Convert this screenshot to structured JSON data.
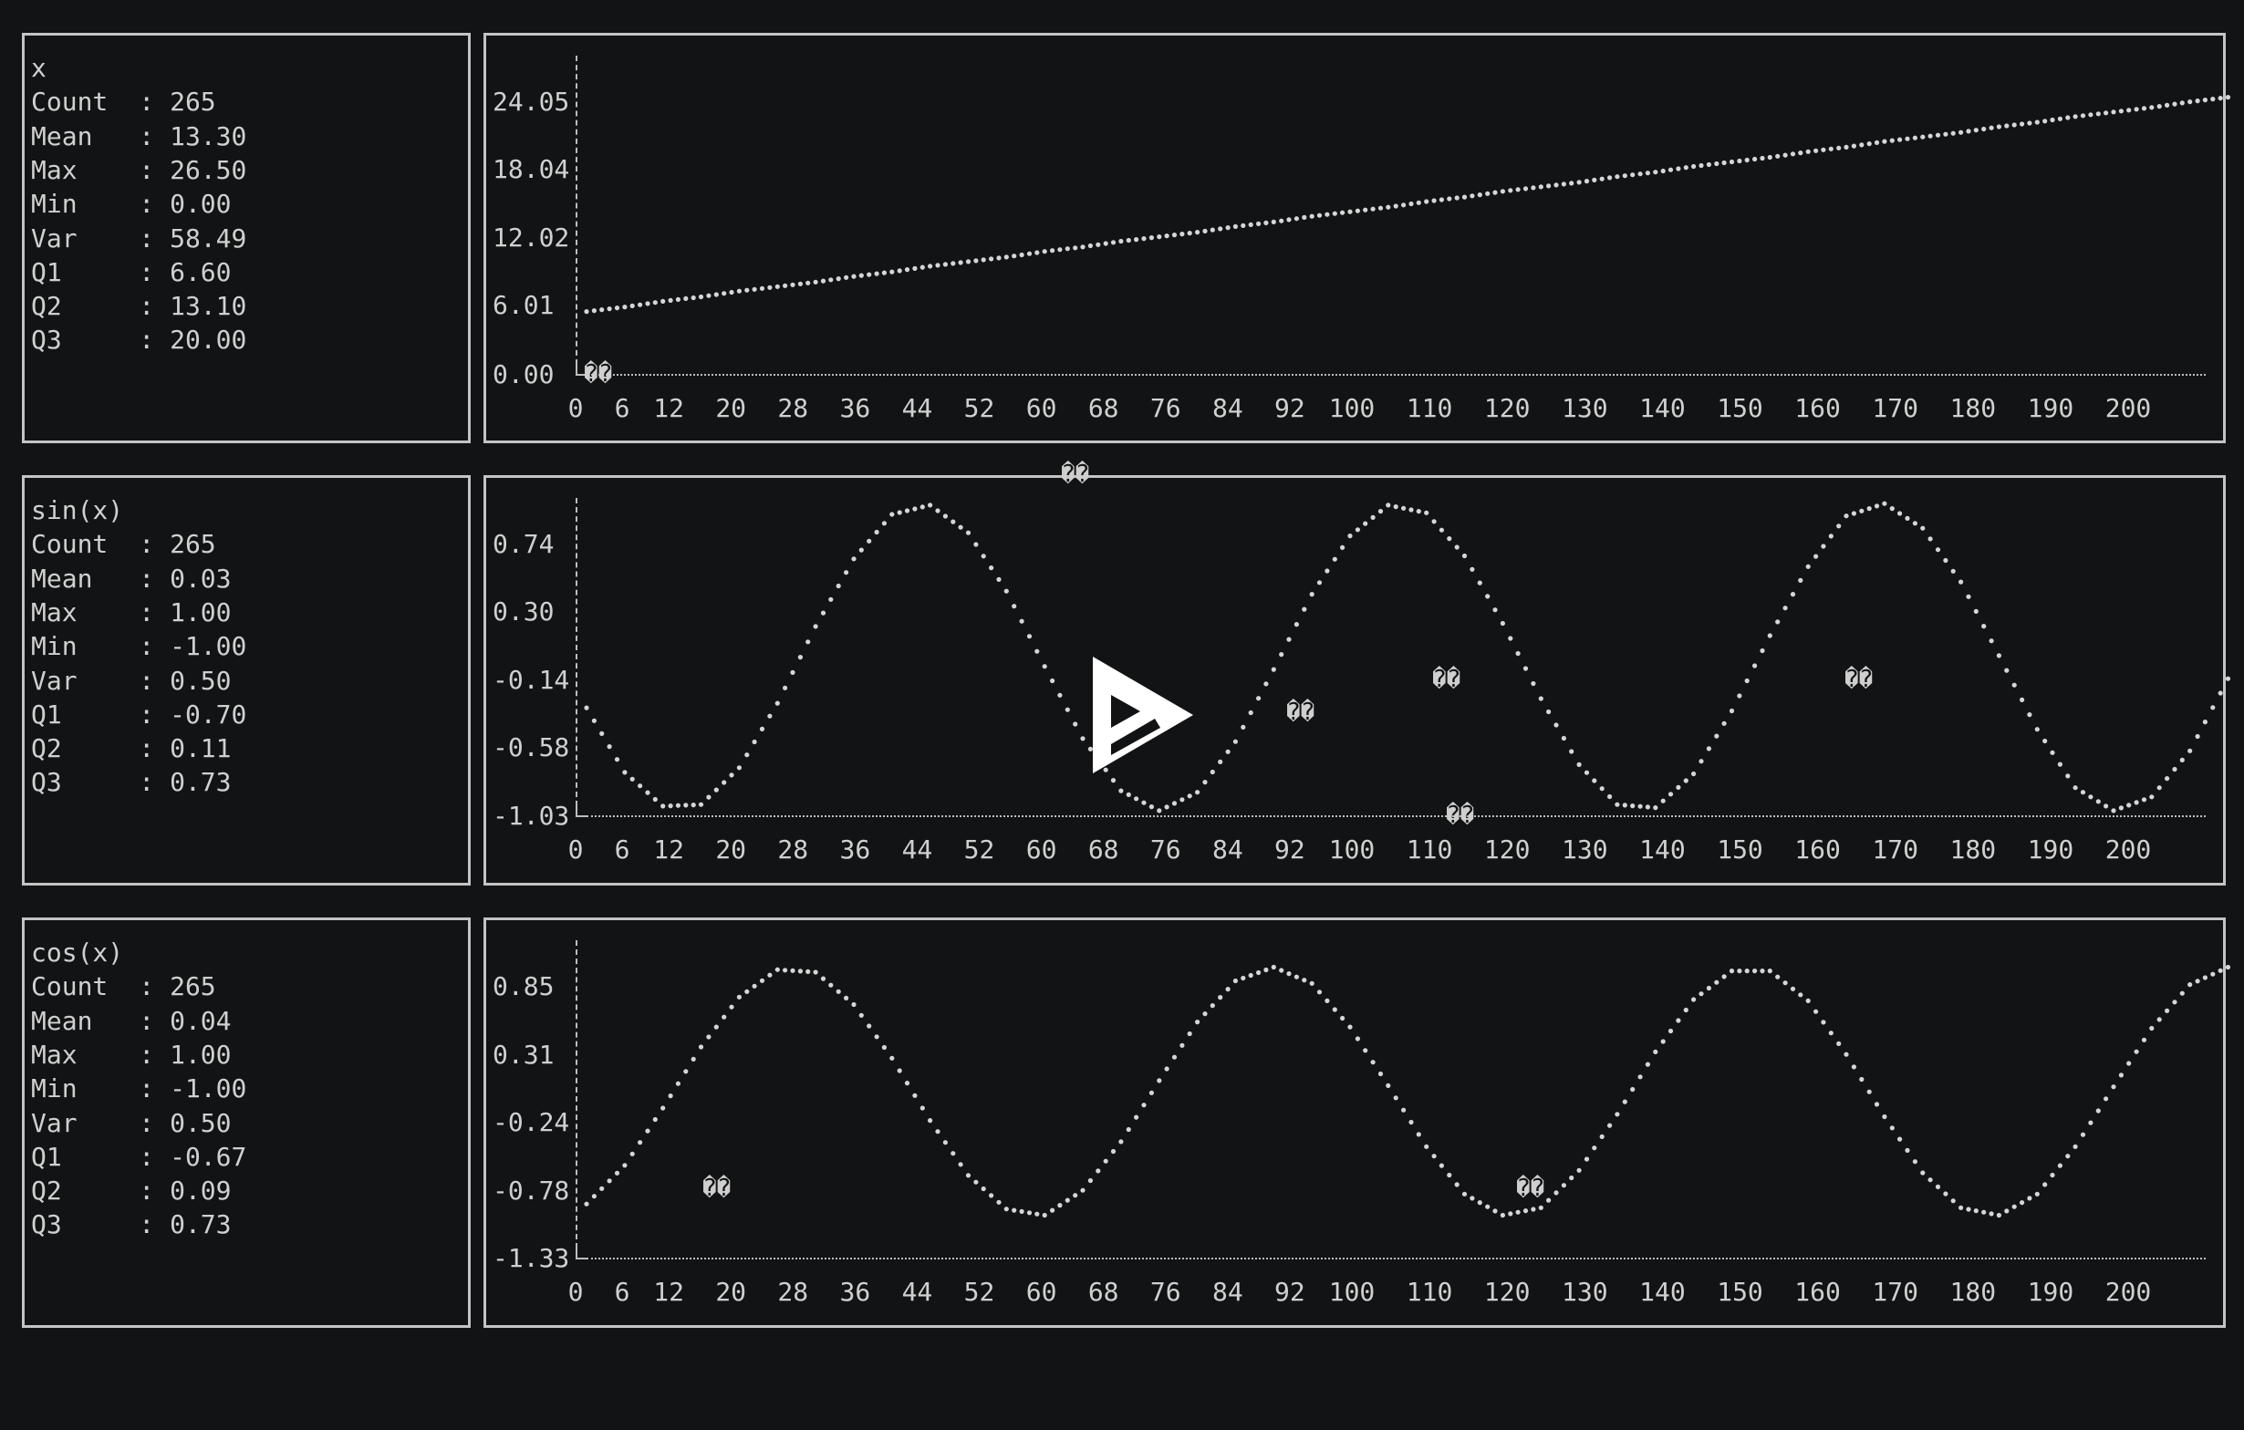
{
  "terminal": {
    "separator": ":",
    "replacement_glyph": "��",
    "panels": [
      {
        "stats": {
          "title": "x",
          "rows": [
            {
              "label": "Count",
              "value": "265"
            },
            {
              "label": "Mean",
              "value": "13.30"
            },
            {
              "label": "Max",
              "value": "26.50"
            },
            {
              "label": "Min",
              "value": "0.00"
            },
            {
              "label": "Var",
              "value": "58.49"
            },
            {
              "label": "Q1",
              "value": "6.60"
            },
            {
              "label": "Q2",
              "value": "13.10"
            },
            {
              "label": "Q3",
              "value": "20.00"
            }
          ]
        }
      },
      {
        "stats": {
          "title": "sin(x)",
          "rows": [
            {
              "label": "Count",
              "value": "265"
            },
            {
              "label": "Mean",
              "value": "0.03"
            },
            {
              "label": "Max",
              "value": "1.00"
            },
            {
              "label": "Min",
              "value": "-1.00"
            },
            {
              "label": "Var",
              "value": "0.50"
            },
            {
              "label": "Q1",
              "value": "-0.70"
            },
            {
              "label": "Q2",
              "value": "0.11"
            },
            {
              "label": "Q3",
              "value": "0.73"
            }
          ]
        }
      },
      {
        "stats": {
          "title": "cos(x)",
          "rows": [
            {
              "label": "Count",
              "value": "265"
            },
            {
              "label": "Mean",
              "value": "0.04"
            },
            {
              "label": "Max",
              "value": "1.00"
            },
            {
              "label": "Min",
              "value": "-1.00"
            },
            {
              "label": "Var",
              "value": "0.50"
            },
            {
              "label": "Q1",
              "value": "-0.67"
            },
            {
              "label": "Q2",
              "value": "0.09"
            },
            {
              "label": "Q3",
              "value": "0.73"
            }
          ]
        }
      }
    ],
    "player": {
      "play_icon": "asciinema-play-icon"
    }
  },
  "chart_data": [
    {
      "type": "scatter",
      "series_label": "x",
      "y_ticks": [
        "24.05",
        "18.04",
        "12.02",
        "6.01",
        "0.00"
      ],
      "y_tick_values": [
        24.05,
        18.04,
        12.02,
        6.01,
        0.0
      ],
      "x_ticks": [
        "0",
        "6",
        "12",
        "20",
        "28",
        "36",
        "44",
        "52",
        "60",
        "68",
        "76",
        "84",
        "92",
        "100",
        "110",
        "120",
        "130",
        "140",
        "150",
        "160",
        "170",
        "180",
        "190",
        "200"
      ],
      "ylim": [
        0,
        24.05
      ],
      "x": [
        0,
        5,
        10,
        15,
        20,
        25,
        30,
        35,
        40,
        45,
        50,
        55,
        60,
        65,
        70,
        75,
        80,
        85,
        90,
        95,
        100,
        105,
        110,
        115,
        120,
        125,
        130,
        135,
        140,
        145,
        150,
        155,
        160,
        165,
        170,
        175,
        180,
        185,
        190,
        195,
        200,
        205,
        210,
        215
      ],
      "y": [
        5.5,
        5.9,
        6.4,
        6.8,
        7.3,
        7.7,
        8.1,
        8.6,
        9.0,
        9.5,
        9.9,
        10.3,
        10.8,
        11.2,
        11.7,
        12.1,
        12.5,
        13.0,
        13.4,
        13.9,
        14.3,
        14.7,
        15.2,
        15.6,
        16.1,
        16.5,
        16.9,
        17.4,
        17.8,
        18.3,
        18.7,
        19.1,
        19.6,
        20.0,
        20.5,
        20.9,
        21.3,
        21.8,
        22.2,
        22.7,
        23.1,
        23.5,
        24.0,
        24.4
      ]
    },
    {
      "type": "scatter",
      "series_label": "sin(x)",
      "y_ticks": [
        "0.74",
        "0.30",
        "-0.14",
        "-0.58",
        "-1.03"
      ],
      "y_tick_values": [
        0.74,
        0.3,
        -0.14,
        -0.58,
        -1.03
      ],
      "x_ticks": [
        "0",
        "6",
        "12",
        "20",
        "28",
        "36",
        "44",
        "52",
        "60",
        "68",
        "76",
        "84",
        "92",
        "100",
        "110",
        "120",
        "130",
        "140",
        "150",
        "160",
        "170",
        "180",
        "190",
        "200"
      ],
      "ylim": [
        -1.03,
        1.0
      ],
      "x": [
        0,
        5,
        10,
        15,
        20,
        25,
        30,
        35,
        40,
        45,
        50,
        55,
        60,
        65,
        70,
        75,
        80,
        85,
        90,
        95,
        100,
        105,
        110,
        115,
        120,
        125,
        130,
        135,
        140,
        145,
        150,
        155,
        160,
        165,
        170,
        175,
        180,
        185,
        190,
        195,
        200,
        205,
        210,
        215
      ],
      "y": [
        -0.33,
        -0.75,
        -0.97,
        -0.96,
        -0.72,
        -0.3,
        0.2,
        0.64,
        0.93,
        0.99,
        0.81,
        0.43,
        -0.06,
        -0.53,
        -0.87,
        -1.0,
        -0.88,
        -0.55,
        -0.08,
        0.41,
        0.79,
        0.99,
        0.94,
        0.66,
        0.22,
        -0.27,
        -0.7,
        -0.96,
        -0.98,
        -0.76,
        -0.35,
        0.14,
        0.59,
        0.92,
        1.0,
        0.84,
        0.49,
        0.01,
        -0.47,
        -0.85,
        -1.0,
        -0.91,
        -0.61,
        -0.14
      ]
    },
    {
      "type": "scatter",
      "series_label": "cos(x)",
      "y_ticks": [
        "0.85",
        "0.31",
        "-0.24",
        "-0.78",
        "-1.33"
      ],
      "y_tick_values": [
        0.85,
        0.31,
        -0.24,
        -0.78,
        -1.33
      ],
      "x_ticks": [
        "0",
        "6",
        "12",
        "20",
        "28",
        "36",
        "44",
        "52",
        "60",
        "68",
        "76",
        "84",
        "92",
        "100",
        "110",
        "120",
        "130",
        "140",
        "150",
        "160",
        "170",
        "180",
        "190",
        "200"
      ],
      "ylim": [
        -1.33,
        1.0
      ],
      "x": [
        0,
        5,
        10,
        15,
        20,
        25,
        30,
        35,
        40,
        45,
        50,
        55,
        60,
        65,
        70,
        75,
        80,
        85,
        90,
        95,
        100,
        105,
        110,
        115,
        120,
        125,
        130,
        135,
        140,
        145,
        150,
        155,
        160,
        165,
        170,
        175,
        180,
        185,
        190,
        195,
        200,
        205,
        210,
        215
      ],
      "y": [
        -0.9,
        -0.59,
        -0.13,
        0.36,
        0.76,
        0.98,
        0.96,
        0.7,
        0.27,
        -0.23,
        -0.67,
        -0.94,
        -0.99,
        -0.79,
        -0.4,
        0.09,
        0.56,
        0.89,
        1.0,
        0.87,
        0.52,
        0.05,
        -0.44,
        -0.82,
        -0.99,
        -0.93,
        -0.63,
        -0.18,
        0.32,
        0.74,
        0.97,
        0.97,
        0.73,
        0.3,
        -0.2,
        -0.65,
        -0.93,
        -0.99,
        -0.82,
        -0.44,
        0.04,
        0.51,
        0.86,
        1.0
      ]
    }
  ]
}
